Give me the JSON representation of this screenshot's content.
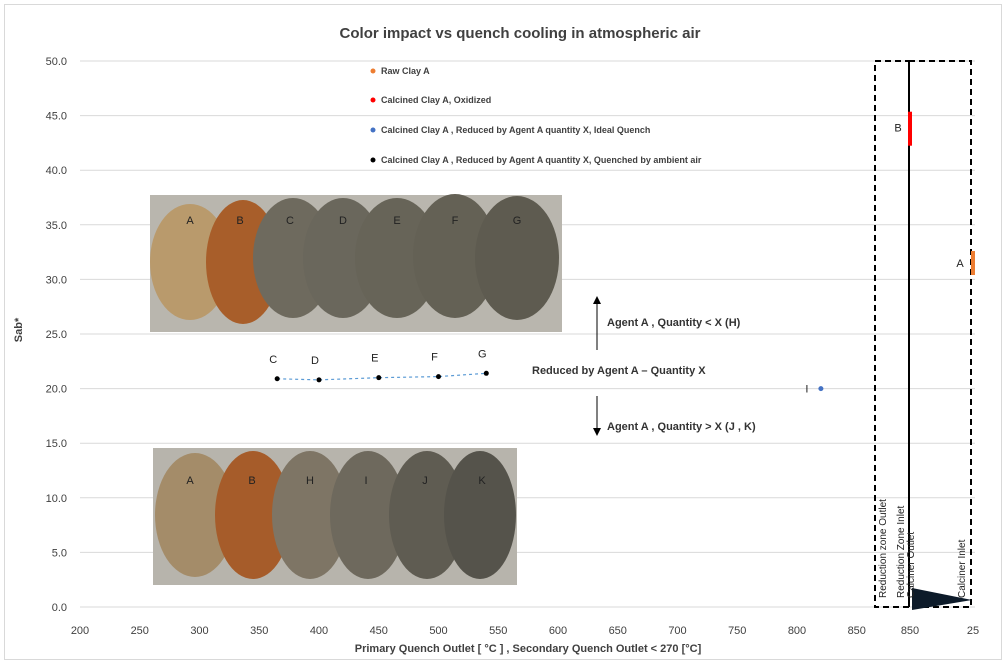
{
  "chart_data": {
    "type": "scatter",
    "title": "Color impact vs quench cooling in atmospheric air",
    "xlabel": "Primary Quench Outlet [ °C ] , Secondary Quench Outlet < 270 [°C]",
    "ylabel": "Sab*",
    "ylim": [
      0,
      50
    ],
    "xlim": [
      200,
      850
    ],
    "x_ticks": [
      "200",
      "250",
      "300",
      "350",
      "400",
      "450",
      "500",
      "550",
      "600",
      "650",
      "700",
      "750",
      "800",
      "850",
      "850",
      "25"
    ],
    "y_ticks": [
      "0.0",
      "5.0",
      "10.0",
      "15.0",
      "20.0",
      "25.0",
      "30.0",
      "35.0",
      "40.0",
      "45.0",
      "50.0"
    ],
    "grid": "horizontal",
    "legend_position": "top-center",
    "colors": {
      "raw_clay": "#ed7d31",
      "oxidized": "#ff0000",
      "ideal_quench": "#4472c4",
      "ambient_air": "#000000",
      "dashed_line": "#5b9bd5"
    },
    "series": [
      {
        "name": "Raw Clay A",
        "points": [
          {
            "x": "25",
            "y": 31.5,
            "label": "A"
          }
        ]
      },
      {
        "name": "Calcined Clay A, Oxidized",
        "points": [
          {
            "x": "850",
            "y": 43.8,
            "label": "B"
          }
        ]
      },
      {
        "name": "Calcined Clay A , Reduced by Agent A quantity X, Ideal Quench",
        "points": [
          {
            "x": 820,
            "y": 20.0,
            "label": "I"
          }
        ]
      },
      {
        "name": "Calcined Clay A , Reduced by Agent A quantity X, Quenched by ambient air",
        "points": [
          {
            "x": 365,
            "y": 20.9,
            "label": "C"
          },
          {
            "x": 400,
            "y": 20.8,
            "label": "D"
          },
          {
            "x": 450,
            "y": 21.0,
            "label": "E"
          },
          {
            "x": 500,
            "y": 21.1,
            "label": "F"
          },
          {
            "x": 540,
            "y": 21.4,
            "label": "G"
          }
        ]
      }
    ],
    "annotations": {
      "center": "Reduced by Agent A – Quantity X",
      "up": "Agent A , Quantity < X (H)",
      "down": "Agent A , Quantity > X (J , K)",
      "zone1": "Reduction zone Outlet",
      "zone2": "Reduction Zone Inlet",
      "zone2b": "Calciner Outlet",
      "zone3": "Calciner Inlet"
    },
    "photo_labels_top": [
      "A",
      "B",
      "C",
      "D",
      "E",
      "F",
      "G"
    ],
    "photo_labels_bottom": [
      "A",
      "B",
      "H",
      "I",
      "J",
      "K"
    ]
  }
}
